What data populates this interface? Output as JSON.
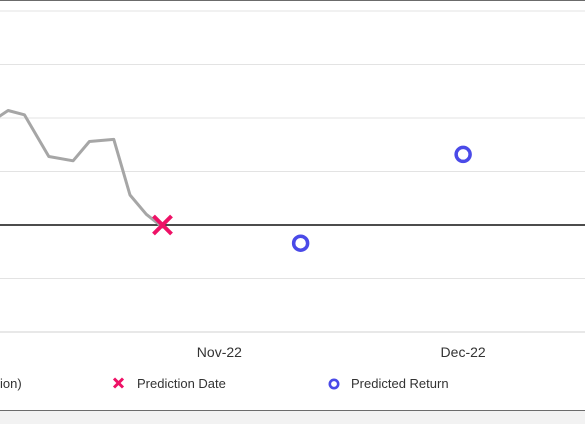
{
  "chart_data": {
    "type": "line",
    "x_axis": {
      "type": "date",
      "ticks": [
        {
          "label": "Nov-22",
          "date": "2022-11-01"
        },
        {
          "label": "Dec-22",
          "date": "2022-12-01"
        }
      ],
      "xlim": [
        "2022-10-05",
        "2022-12-16"
      ]
    },
    "y_axis": {
      "tick_labels_visible": false,
      "ylim": [
        -2.0,
        1.0
      ],
      "gridlines": [
        1.0,
        0.5,
        0.0,
        -0.5,
        -1.5
      ],
      "zero_line": -1.0
    },
    "grid": true,
    "series": [
      {
        "name": "",
        "legend_label_partial": "ion)",
        "color": "#a6a6a6",
        "style": "line",
        "points": [
          {
            "date": "2022-10-05",
            "value": 0.02
          },
          {
            "date": "2022-10-06",
            "value": 0.07
          },
          {
            "date": "2022-10-08",
            "value": 0.03
          },
          {
            "date": "2022-10-11",
            "value": -0.36
          },
          {
            "date": "2022-10-14",
            "value": -0.4
          },
          {
            "date": "2022-10-16",
            "value": -0.22
          },
          {
            "date": "2022-10-19",
            "value": -0.2
          },
          {
            "date": "2022-10-21",
            "value": -0.72
          },
          {
            "date": "2022-10-23",
            "value": -0.9
          },
          {
            "date": "2022-10-25",
            "value": -1.02
          }
        ]
      },
      {
        "name": "Prediction Date",
        "color": "#ee1166",
        "style": "x-marker",
        "points": [
          {
            "date": "2022-10-25",
            "value": -1.0
          }
        ]
      },
      {
        "name": "Predicted Return",
        "color": "#4a4ae8",
        "style": "circle-marker",
        "points": [
          {
            "date": "2022-11-11",
            "value": -1.17
          },
          {
            "date": "2022-12-01",
            "value": -0.34
          }
        ]
      }
    ],
    "legend": {
      "placement": "bottom",
      "entries": [
        {
          "label": "ion)",
          "icon": "none"
        },
        {
          "label": "Prediction Date",
          "icon": "x-marker-icon"
        },
        {
          "label": "Predicted Return",
          "icon": "circle-marker-icon"
        }
      ]
    }
  }
}
